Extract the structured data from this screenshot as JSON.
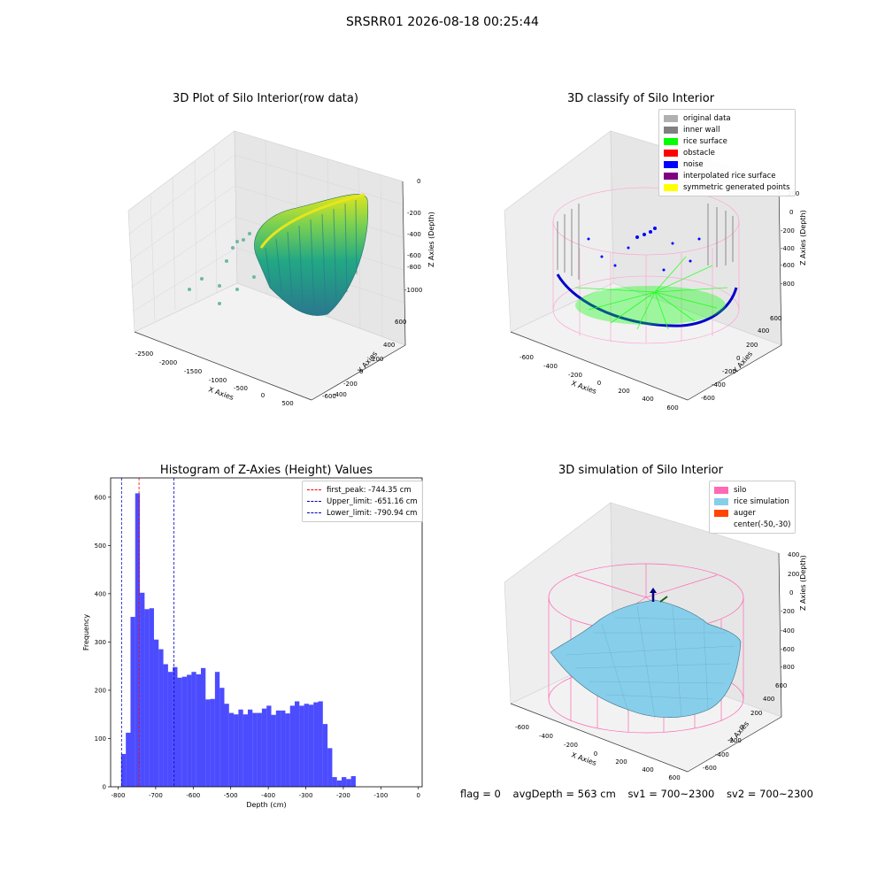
{
  "suptitle": "SRSRR01 2026-08-18 00:25:44",
  "panels": {
    "raw": {
      "title": "3D Plot of Silo Interior(row data)",
      "xlabel": "X Axies",
      "ylabel": "Y Axies",
      "zlabel": "Z Axies (Depth)",
      "xticks": [
        "-2500",
        "-2000",
        "-1500",
        "-1000",
        "-500",
        "0",
        "500"
      ],
      "yticks": [
        "600",
        "400",
        "200",
        "0",
        "-200",
        "-400",
        "-600"
      ],
      "zticks": [
        "0",
        "-200",
        "-400",
        "-600",
        "-800",
        "-1000"
      ]
    },
    "classify": {
      "title": "3D classify of Silo Interior",
      "xlabel": "X Axies",
      "ylabel": "Y Axies",
      "zlabel": "Z Axies (Depth)",
      "xticks": [
        "-600",
        "-400",
        "-200",
        "0",
        "200",
        "400",
        "600"
      ],
      "yticks": [
        "600",
        "400",
        "200",
        "0",
        "-200",
        "-400",
        "-600"
      ],
      "zticks": [
        "200",
        "0",
        "-200",
        "-400",
        "-600",
        "-800"
      ],
      "legend": [
        {
          "label": "original data",
          "color": "#b0b0b0"
        },
        {
          "label": "inner wall",
          "color": "#808080"
        },
        {
          "label": "rice surface",
          "color": "#00ff00"
        },
        {
          "label": "obstacle",
          "color": "#ff0000"
        },
        {
          "label": "noise",
          "color": "#0000ff"
        },
        {
          "label": "interpolated rice surface",
          "color": "#800080"
        },
        {
          "label": "symmetric generated points",
          "color": "#ffff00"
        }
      ]
    },
    "simulation": {
      "title": "3D simulation of Silo Interior",
      "xlabel": "X Axies",
      "ylabel": "Y Axies",
      "zlabel": "Z Axies (Depth)",
      "xticks": [
        "-600",
        "-400",
        "-200",
        "0",
        "200",
        "400",
        "600"
      ],
      "yticks": [
        "600",
        "400",
        "200",
        "0",
        "-200",
        "-400",
        "-600"
      ],
      "zticks": [
        "400",
        "200",
        "0",
        "-200",
        "-400",
        "-600",
        "-800"
      ],
      "legend": [
        {
          "label": "silo",
          "color": "#ff69b4"
        },
        {
          "label": "rice simulation",
          "color": "#87ceeb"
        },
        {
          "label": "auger",
          "color": "#ff4500"
        },
        {
          "label": "center(-50,-30)",
          "color": ""
        }
      ]
    }
  },
  "footer": {
    "flag": "flag = 0",
    "avg": "avgDepth = 563 cm",
    "sv1": "sv1 = 700~2300",
    "sv2": "sv2 = 700~2300"
  },
  "chart_data": {
    "type": "bar",
    "title": "Histogram of Z-Axies (Height) Values",
    "xlabel": "Depth (cm)",
    "ylabel": "Frequency",
    "xlim": [
      -820,
      10
    ],
    "ylim": [
      0,
      640
    ],
    "xticks": [
      -800,
      -700,
      -600,
      -500,
      -400,
      -300,
      -200,
      -100,
      0
    ],
    "yticks": [
      0,
      100,
      200,
      300,
      400,
      500,
      600
    ],
    "bin_width": 12.5,
    "bins_start": -792,
    "color": "#0000ff",
    "values": [
      68,
      112,
      352,
      608,
      402,
      368,
      370,
      305,
      285,
      254,
      238,
      248,
      226,
      228,
      232,
      238,
      233,
      246,
      181,
      182,
      238,
      205,
      172,
      153,
      150,
      160,
      150,
      160,
      153,
      153,
      162,
      168,
      149,
      158,
      158,
      152,
      168,
      177,
      168,
      172,
      170,
      175,
      177,
      130,
      80,
      20,
      13,
      20,
      16,
      22
    ],
    "vlines": [
      {
        "label": "first_peak: -744.35 cm",
        "x": -744.35,
        "color": "#ff0000"
      },
      {
        "label": "Upper_limit: -651.16 cm",
        "x": -651.16,
        "color": "#0000cc"
      },
      {
        "label": "Lower_limit: -790.94 cm",
        "x": -790.94,
        "color": "#0000cc"
      }
    ]
  }
}
